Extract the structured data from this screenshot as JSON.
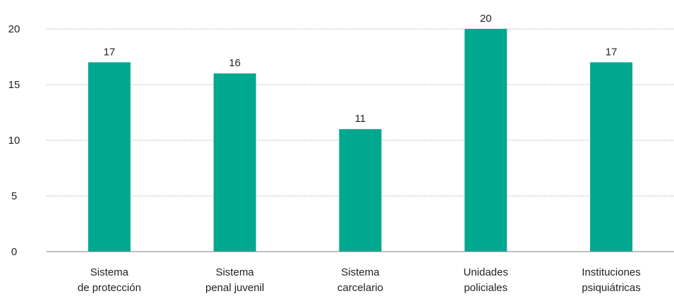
{
  "chart_data": {
    "type": "bar",
    "title": "",
    "xlabel": "",
    "ylabel": "",
    "categories": [
      [
        "Sistema",
        "de protección"
      ],
      [
        "Sistema",
        "penal juvenil"
      ],
      [
        "Sistema",
        "carcelario"
      ],
      [
        "Unidades",
        "policiales"
      ],
      [
        "Instituciones",
        "psiquiátricas"
      ]
    ],
    "values": [
      17,
      16,
      11,
      20,
      17
    ],
    "ylim": [
      0,
      20
    ],
    "yticks": [
      0,
      5,
      10,
      15,
      20
    ],
    "bar_color": "#00a88f",
    "grid": true,
    "legend": "none"
  }
}
